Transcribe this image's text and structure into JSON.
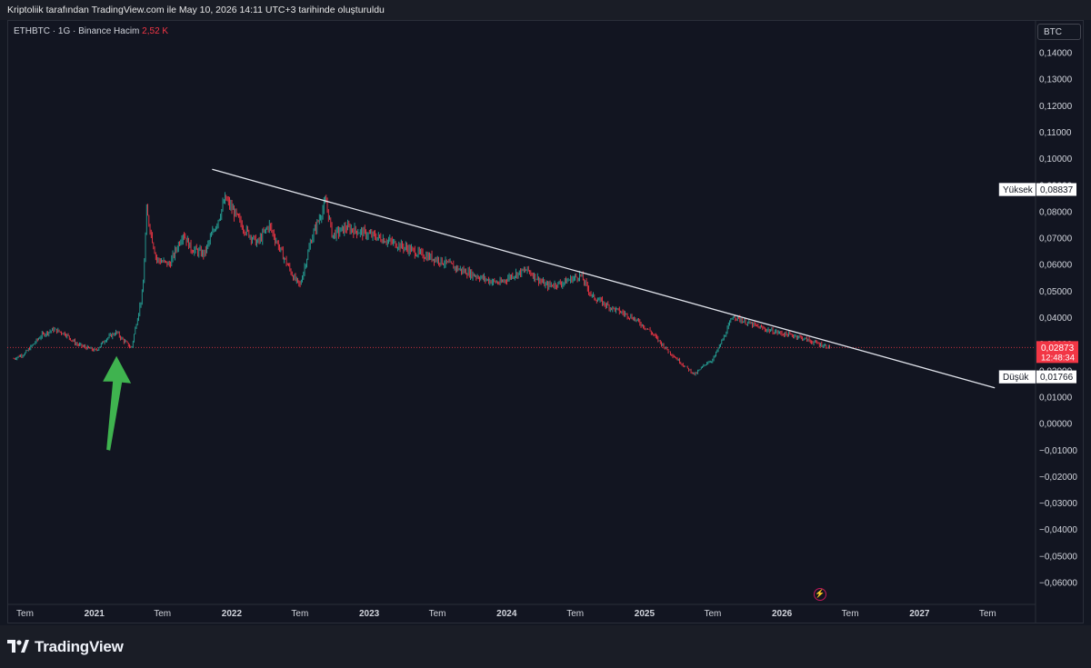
{
  "header": {
    "attribution": "Kriptoliik tarafından TradingView.com ile May 10, 2026 14:11 UTC+3 tarihinde oluşturuldu"
  },
  "legend": {
    "symbol": "ETHBTC · 1G · Binance",
    "volume_label": "Hacim",
    "volume_value": "2,52 K"
  },
  "axis_unit": "BTC",
  "price_axis": {
    "ticks": [
      "0,14000",
      "0,13000",
      "0,12000",
      "0,11000",
      "0,10000",
      "0,09000",
      "0,08000",
      "0,07000",
      "0,06000",
      "0,05000",
      "0,04000",
      "0,03000",
      "0,02000",
      "0,01000",
      "0,00000",
      "−0,01000",
      "−0,02000",
      "−0,03000",
      "−0,04000",
      "−0,05000",
      "−0,06000"
    ],
    "high_label": "Yüksek",
    "high_value": "0,08837",
    "low_label": "Düşük",
    "low_value": "0,01766",
    "last_price": "0,02873",
    "countdown": "12:48:34"
  },
  "time_axis": {
    "labels": [
      "Tem",
      "2021",
      "Tem",
      "2022",
      "Tem",
      "2023",
      "Tem",
      "2024",
      "Tem",
      "2025",
      "Tem",
      "2026",
      "Tem",
      "2027",
      "Tem"
    ]
  },
  "brand": "TradingView",
  "colors": {
    "background": "#131722",
    "up": "#26a69a",
    "down": "#f23645",
    "trendline": "#e0e3eb",
    "arrow": "#3fb34f",
    "price_line": "#f23645"
  },
  "chart_data": {
    "type": "line",
    "title": "ETHBTC · 1G · Binance",
    "ylabel": "BTC",
    "ylim": [
      -0.065,
      0.145
    ],
    "xlim": [
      "2020-05-15",
      "2027-09-01"
    ],
    "grid": false,
    "series": [
      {
        "name": "ETHBTC",
        "x": [
          "2020-06-01",
          "2020-07-01",
          "2020-08-15",
          "2020-09-15",
          "2020-10-15",
          "2020-11-15",
          "2020-12-15",
          "2021-01-05",
          "2021-02-01",
          "2021-03-01",
          "2021-03-15",
          "2021-04-10",
          "2021-04-20",
          "2021-05-10",
          "2021-05-20",
          "2021-06-15",
          "2021-07-20",
          "2021-08-25",
          "2021-09-15",
          "2021-10-20",
          "2021-12-01",
          "2021-12-15",
          "2022-02-01",
          "2022-03-10",
          "2022-04-10",
          "2022-05-15",
          "2022-06-15",
          "2022-07-01",
          "2022-08-01",
          "2022-09-08",
          "2022-09-25",
          "2022-11-01",
          "2022-12-15",
          "2023-02-01",
          "2023-04-15",
          "2023-05-15",
          "2023-07-01",
          "2023-09-01",
          "2023-11-15",
          "2023-12-15",
          "2024-01-15",
          "2024-02-25",
          "2024-04-15",
          "2024-05-25",
          "2024-07-15",
          "2024-08-15",
          "2024-10-01",
          "2024-12-01",
          "2025-01-15",
          "2025-03-01",
          "2025-04-15",
          "2025-05-15",
          "2025-06-15",
          "2025-07-01",
          "2025-08-01",
          "2025-08-25",
          "2025-09-15",
          "2025-10-20",
          "2025-11-20",
          "2026-01-01",
          "2026-02-10",
          "2026-03-20",
          "2026-04-10",
          "2026-05-10"
        ],
        "y": [
          0.0245,
          0.0265,
          0.0335,
          0.0355,
          0.034,
          0.03,
          0.0285,
          0.0275,
          0.032,
          0.0345,
          0.032,
          0.0285,
          0.036,
          0.05,
          0.08,
          0.062,
          0.06,
          0.072,
          0.066,
          0.064,
          0.079,
          0.085,
          0.074,
          0.068,
          0.075,
          0.064,
          0.055,
          0.052,
          0.07,
          0.084,
          0.071,
          0.074,
          0.072,
          0.07,
          0.066,
          0.064,
          0.062,
          0.058,
          0.054,
          0.053,
          0.056,
          0.058,
          0.052,
          0.053,
          0.056,
          0.048,
          0.044,
          0.04,
          0.035,
          0.028,
          0.022,
          0.0185,
          0.023,
          0.024,
          0.033,
          0.041,
          0.039,
          0.037,
          0.0355,
          0.034,
          0.033,
          0.031,
          0.03,
          0.0287
        ]
      }
    ],
    "trendline": {
      "x": [
        "2021-11-10",
        "2027-07-20"
      ],
      "y": [
        0.096,
        0.0135
      ]
    },
    "last_price": 0.02873,
    "high": 0.08837,
    "low": 0.01766,
    "annotations": [
      {
        "type": "arrow",
        "direction": "up",
        "x": "2021-03-01",
        "y": 0.0255
      }
    ]
  }
}
